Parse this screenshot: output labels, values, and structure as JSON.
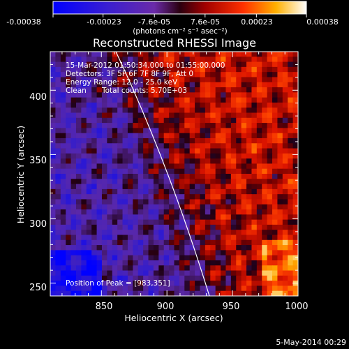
{
  "chart_data": {
    "type": "heatmap",
    "title": "Reconstructed RHESSI Image",
    "xlabel": "Heliocentric X (arcsec)",
    "ylabel": "Heliocentric Y (arcsec)",
    "xlim": [
      811,
      1000
    ],
    "ylim": [
      240,
      430
    ],
    "x_ticks": [
      "850",
      "900",
      "950",
      "1000"
    ],
    "y_ticks": [
      "250",
      "300",
      "350",
      "400"
    ],
    "x_tick_values": [
      850,
      900,
      950,
      1000
    ],
    "y_tick_values": [
      250,
      300,
      350,
      400
    ],
    "colorbar": {
      "tick_labels": [
        "-0.00038",
        "-0.00023",
        "-7.6e-05",
        "7.6e-05",
        "0.00023",
        "0.00038"
      ],
      "tick_values": [
        -0.00038,
        -0.00023,
        -7.6e-05,
        7.6e-05,
        0.00023,
        0.00038
      ],
      "range": [
        -0.00038,
        0.00038
      ],
      "colors": [
        "#0000ff",
        "#5a1fc0",
        "#8a0000",
        "#ff1a00",
        "#ffb000",
        "#ffffff"
      ]
    },
    "annotations": {
      "line1": "15-Mar-2012 01:50:34.000 to 01:55:00.000",
      "line2": "Detectors: 3F 5F 6F 7F 8F 9F, Att 0",
      "line3": "Energy Range: 12.0 - 25.0 keV",
      "line4a": "Clean",
      "line4b": "Total counts: 5.70E+03",
      "peak": "Position of Peak = [983,351]"
    },
    "limb_color": "#ffffff"
  },
  "colorbar_units": "(photons cm⁻² s⁻¹ asec⁻²)",
  "footer_date": "5-May-2014 00:29"
}
